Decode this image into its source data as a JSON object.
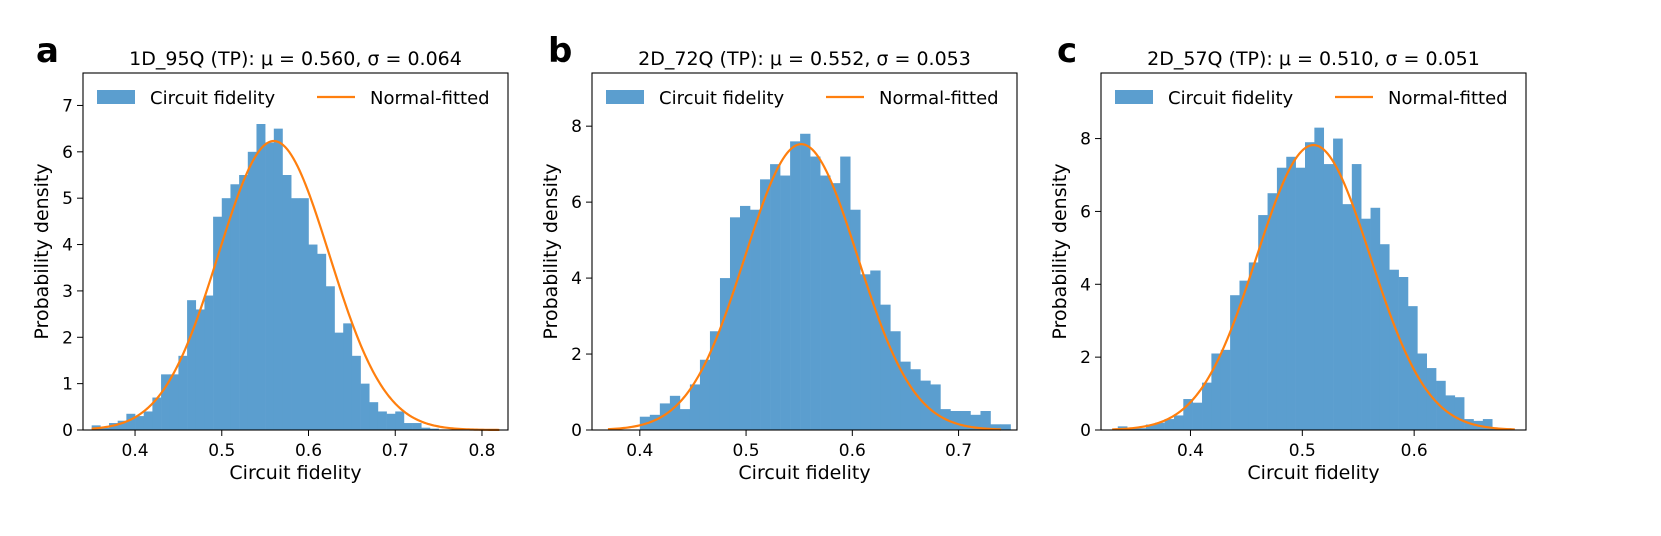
{
  "figure": {
    "colors": {
      "bar": "#5b9ecf",
      "fit": "#ff7f0e",
      "axis": "#000000"
    }
  },
  "chart_data": [
    {
      "type": "bar",
      "panel_label": "a",
      "title": "1D_95Q (TP): μ = 0.560, σ = 0.064",
      "xlabel": "Circuit fidelity",
      "ylabel": "Probability density",
      "xlim": [
        0.34,
        0.83
      ],
      "ylim": [
        0,
        7.7
      ],
      "xticks": [
        0.4,
        0.5,
        0.6,
        0.7,
        0.8
      ],
      "xtick_labels": [
        "0.4",
        "0.5",
        "0.6",
        "0.7",
        "0.8"
      ],
      "yticks": [
        0,
        1,
        2,
        3,
        4,
        5,
        6,
        7
      ],
      "ytick_labels": [
        "0",
        "1",
        "2",
        "3",
        "4",
        "5",
        "6",
        "7"
      ],
      "legend": [
        "Circuit fidelity",
        "Normal-fitted"
      ],
      "legend_position": "top",
      "grid": false,
      "bin_start": 0.35,
      "bin_width": 0.01,
      "values": [
        0.1,
        0.05,
        0.15,
        0.2,
        0.35,
        0.3,
        0.4,
        0.7,
        1.2,
        1.2,
        1.6,
        2.8,
        2.6,
        2.9,
        4.6,
        5.0,
        5.3,
        5.5,
        6.0,
        6.6,
        6.2,
        6.5,
        5.5,
        5.0,
        5.0,
        4.0,
        3.8,
        3.1,
        2.1,
        2.3,
        1.6,
        1.0,
        0.6,
        0.4,
        0.35,
        0.4,
        0.15,
        0.15,
        0.05,
        0.03
      ],
      "fit": {
        "mu": 0.56,
        "sigma": 0.064,
        "x_range": [
          0.35,
          0.82
        ]
      }
    },
    {
      "type": "bar",
      "panel_label": "b",
      "title": "2D_72Q (TP): μ = 0.552, σ = 0.053",
      "xlabel": "Circuit fidelity",
      "ylabel": "Probability density",
      "xlim": [
        0.355,
        0.755
      ],
      "ylim": [
        0,
        9.4
      ],
      "xticks": [
        0.4,
        0.5,
        0.6,
        0.7
      ],
      "xtick_labels": [
        "0.4",
        "0.5",
        "0.6",
        "0.7"
      ],
      "yticks": [
        0,
        2,
        4,
        6,
        8
      ],
      "ytick_labels": [
        "0",
        "2",
        "4",
        "6",
        "8"
      ],
      "legend": [
        "Circuit fidelity",
        "Normal-fitted"
      ],
      "legend_position": "top",
      "grid": false,
      "bin_start": 0.4,
      "bin_width": 0.00943,
      "values": [
        0.35,
        0.4,
        0.7,
        0.9,
        0.55,
        1.2,
        1.85,
        2.6,
        4.0,
        5.6,
        5.9,
        5.8,
        6.6,
        7.0,
        6.7,
        7.6,
        7.8,
        7.2,
        6.7,
        6.5,
        7.2,
        5.8,
        4.1,
        4.2,
        3.3,
        2.6,
        1.8,
        1.6,
        1.3,
        1.2,
        0.55,
        0.5,
        0.5,
        0.4,
        0.5,
        0.15,
        0.15
      ],
      "fit": {
        "mu": 0.552,
        "sigma": 0.053,
        "x_range": [
          0.37,
          0.74
        ]
      }
    },
    {
      "type": "bar",
      "panel_label": "c",
      "title": "2D_57Q (TP): μ = 0.510, σ = 0.051",
      "xlabel": "Circuit fidelity",
      "ylabel": "Probability density",
      "xlim": [
        0.32,
        0.7
      ],
      "ylim": [
        0,
        9.8
      ],
      "xticks": [
        0.4,
        0.5,
        0.6
      ],
      "xtick_labels": [
        "0.4",
        "0.5",
        "0.6"
      ],
      "yticks": [
        0,
        2,
        4,
        6,
        8
      ],
      "ytick_labels": [
        "0",
        "2",
        "4",
        "6",
        "8"
      ],
      "legend": [
        "Circuit fidelity",
        "Normal-fitted"
      ],
      "legend_position": "top",
      "grid": false,
      "bin_start": 0.335,
      "bin_width": 0.00837,
      "values": [
        0.1,
        0.05,
        0.05,
        0.15,
        0.2,
        0.3,
        0.4,
        0.85,
        0.75,
        1.3,
        2.1,
        2.2,
        3.7,
        4.1,
        4.6,
        5.9,
        6.5,
        7.2,
        7.5,
        7.2,
        7.9,
        8.3,
        7.3,
        8.0,
        6.2,
        7.3,
        5.8,
        6.1,
        5.1,
        4.4,
        4.2,
        3.4,
        2.1,
        1.7,
        1.35,
        0.95,
        0.9,
        0.3,
        0.25,
        0.3,
        0.05,
        0.05
      ],
      "fit": {
        "mu": 0.51,
        "sigma": 0.051,
        "x_range": [
          0.33,
          0.69
        ]
      }
    }
  ]
}
